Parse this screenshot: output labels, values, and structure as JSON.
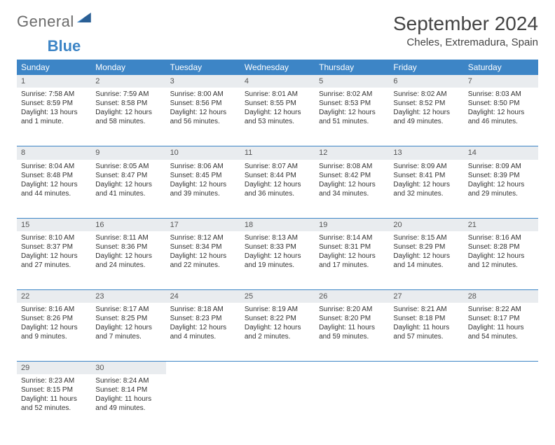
{
  "logo": {
    "part1": "General",
    "part2": "Blue"
  },
  "title": "September 2024",
  "location": "Cheles, Extremadura, Spain",
  "colors": {
    "header_bg": "#3d85c6",
    "daynum_bg": "#e9ecef",
    "row_border": "#3d85c6",
    "text": "#333333",
    "logo_gray": "#6b6b6b",
    "logo_blue": "#3d85c6"
  },
  "weekdays": [
    "Sunday",
    "Monday",
    "Tuesday",
    "Wednesday",
    "Thursday",
    "Friday",
    "Saturday"
  ],
  "weeks": [
    [
      {
        "n": "1",
        "sr": "7:58 AM",
        "ss": "8:59 PM",
        "dl": "13 hours and 1 minute."
      },
      {
        "n": "2",
        "sr": "7:59 AM",
        "ss": "8:58 PM",
        "dl": "12 hours and 58 minutes."
      },
      {
        "n": "3",
        "sr": "8:00 AM",
        "ss": "8:56 PM",
        "dl": "12 hours and 56 minutes."
      },
      {
        "n": "4",
        "sr": "8:01 AM",
        "ss": "8:55 PM",
        "dl": "12 hours and 53 minutes."
      },
      {
        "n": "5",
        "sr": "8:02 AM",
        "ss": "8:53 PM",
        "dl": "12 hours and 51 minutes."
      },
      {
        "n": "6",
        "sr": "8:02 AM",
        "ss": "8:52 PM",
        "dl": "12 hours and 49 minutes."
      },
      {
        "n": "7",
        "sr": "8:03 AM",
        "ss": "8:50 PM",
        "dl": "12 hours and 46 minutes."
      }
    ],
    [
      {
        "n": "8",
        "sr": "8:04 AM",
        "ss": "8:48 PM",
        "dl": "12 hours and 44 minutes."
      },
      {
        "n": "9",
        "sr": "8:05 AM",
        "ss": "8:47 PM",
        "dl": "12 hours and 41 minutes."
      },
      {
        "n": "10",
        "sr": "8:06 AM",
        "ss": "8:45 PM",
        "dl": "12 hours and 39 minutes."
      },
      {
        "n": "11",
        "sr": "8:07 AM",
        "ss": "8:44 PM",
        "dl": "12 hours and 36 minutes."
      },
      {
        "n": "12",
        "sr": "8:08 AM",
        "ss": "8:42 PM",
        "dl": "12 hours and 34 minutes."
      },
      {
        "n": "13",
        "sr": "8:09 AM",
        "ss": "8:41 PM",
        "dl": "12 hours and 32 minutes."
      },
      {
        "n": "14",
        "sr": "8:09 AM",
        "ss": "8:39 PM",
        "dl": "12 hours and 29 minutes."
      }
    ],
    [
      {
        "n": "15",
        "sr": "8:10 AM",
        "ss": "8:37 PM",
        "dl": "12 hours and 27 minutes."
      },
      {
        "n": "16",
        "sr": "8:11 AM",
        "ss": "8:36 PM",
        "dl": "12 hours and 24 minutes."
      },
      {
        "n": "17",
        "sr": "8:12 AM",
        "ss": "8:34 PM",
        "dl": "12 hours and 22 minutes."
      },
      {
        "n": "18",
        "sr": "8:13 AM",
        "ss": "8:33 PM",
        "dl": "12 hours and 19 minutes."
      },
      {
        "n": "19",
        "sr": "8:14 AM",
        "ss": "8:31 PM",
        "dl": "12 hours and 17 minutes."
      },
      {
        "n": "20",
        "sr": "8:15 AM",
        "ss": "8:29 PM",
        "dl": "12 hours and 14 minutes."
      },
      {
        "n": "21",
        "sr": "8:16 AM",
        "ss": "8:28 PM",
        "dl": "12 hours and 12 minutes."
      }
    ],
    [
      {
        "n": "22",
        "sr": "8:16 AM",
        "ss": "8:26 PM",
        "dl": "12 hours and 9 minutes."
      },
      {
        "n": "23",
        "sr": "8:17 AM",
        "ss": "8:25 PM",
        "dl": "12 hours and 7 minutes."
      },
      {
        "n": "24",
        "sr": "8:18 AM",
        "ss": "8:23 PM",
        "dl": "12 hours and 4 minutes."
      },
      {
        "n": "25",
        "sr": "8:19 AM",
        "ss": "8:22 PM",
        "dl": "12 hours and 2 minutes."
      },
      {
        "n": "26",
        "sr": "8:20 AM",
        "ss": "8:20 PM",
        "dl": "11 hours and 59 minutes."
      },
      {
        "n": "27",
        "sr": "8:21 AM",
        "ss": "8:18 PM",
        "dl": "11 hours and 57 minutes."
      },
      {
        "n": "28",
        "sr": "8:22 AM",
        "ss": "8:17 PM",
        "dl": "11 hours and 54 minutes."
      }
    ],
    [
      {
        "n": "29",
        "sr": "8:23 AM",
        "ss": "8:15 PM",
        "dl": "11 hours and 52 minutes."
      },
      {
        "n": "30",
        "sr": "8:24 AM",
        "ss": "8:14 PM",
        "dl": "11 hours and 49 minutes."
      },
      null,
      null,
      null,
      null,
      null
    ]
  ],
  "labels": {
    "sunrise": "Sunrise: ",
    "sunset": "Sunset: ",
    "daylight": "Daylight: "
  }
}
